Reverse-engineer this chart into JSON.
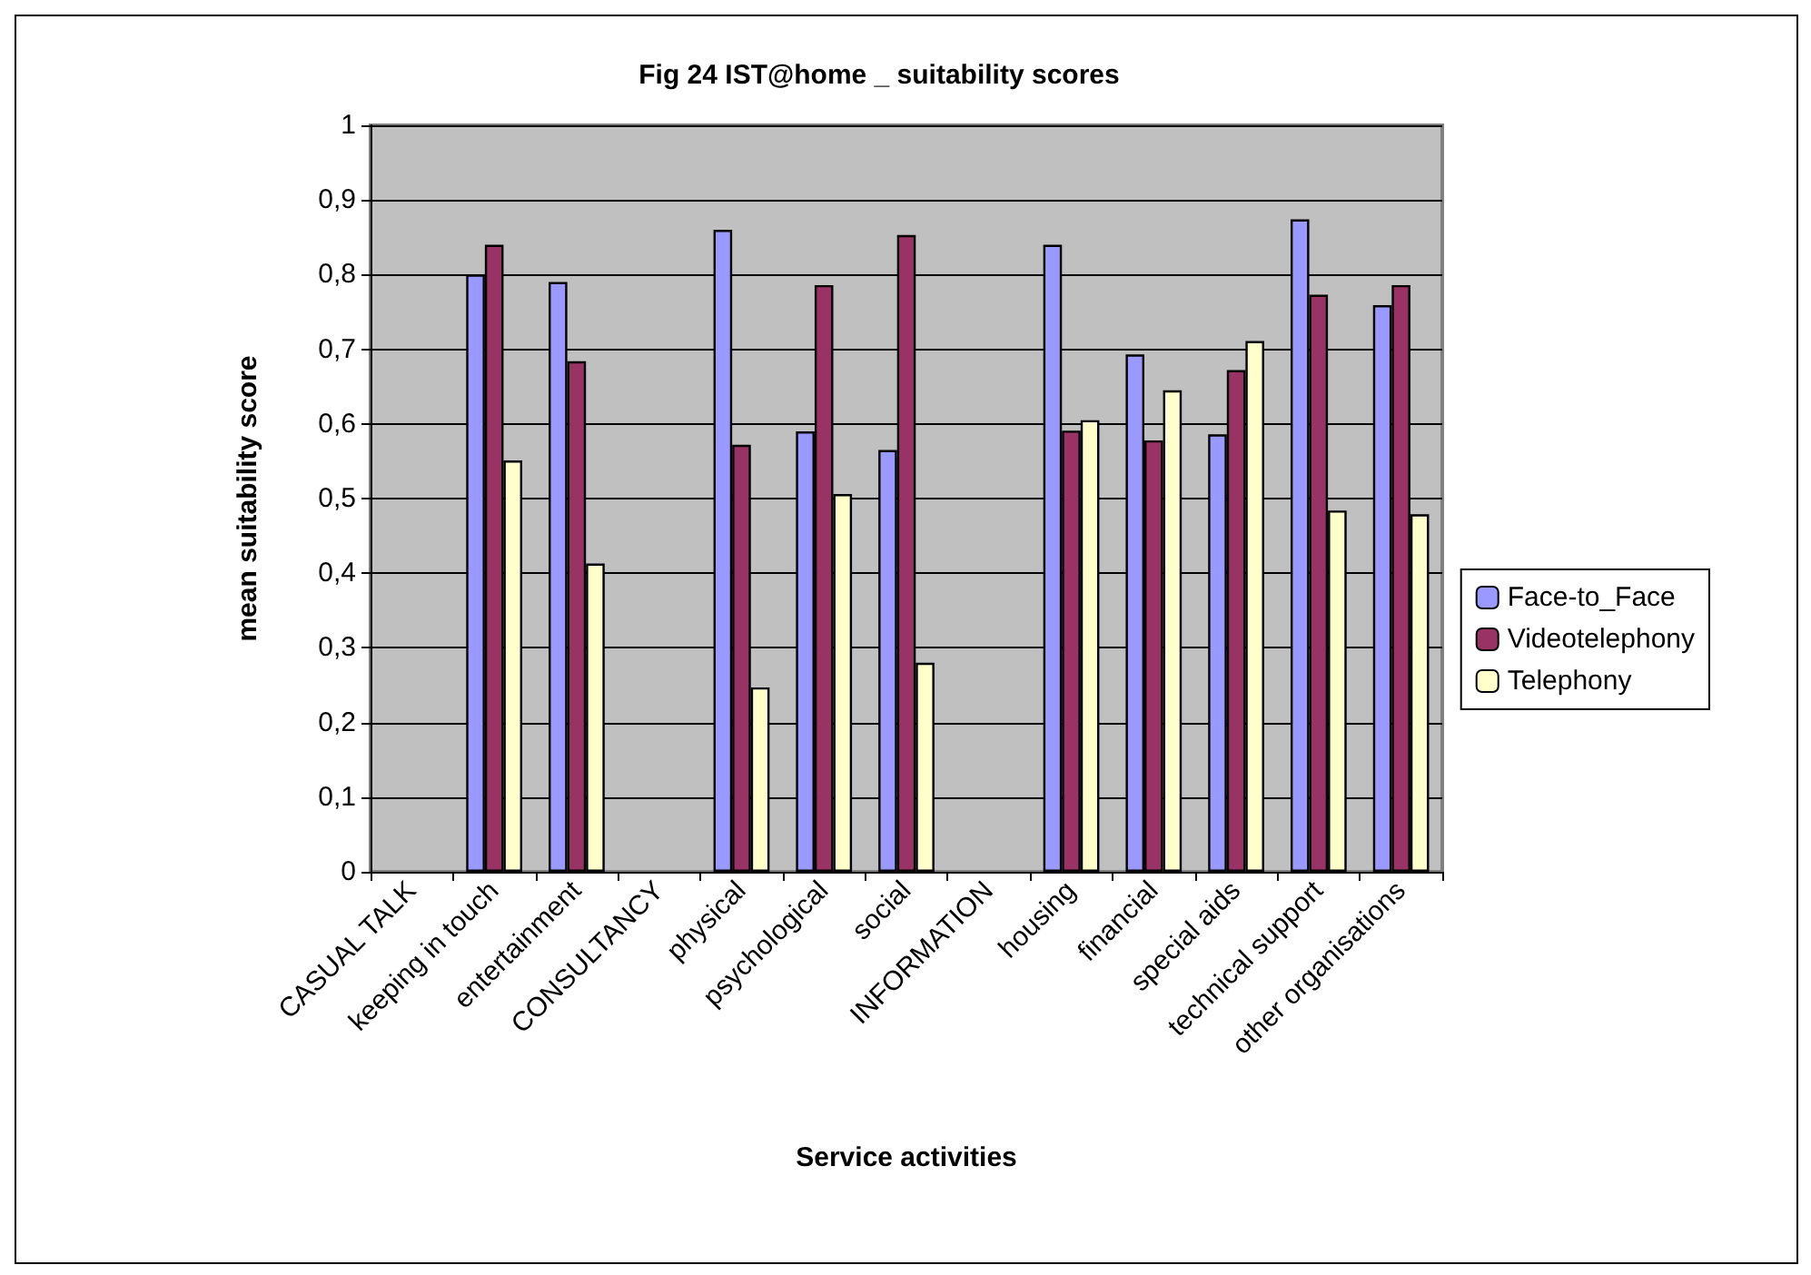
{
  "chart_data": {
    "type": "bar",
    "title": "Fig 24 IST@home _ suitability scores",
    "xlabel": "Service activities",
    "ylabel": "mean suitability score",
    "categories": [
      "CASUAL TALK",
      "keeping in touch",
      "entertainment",
      "CONSULTANCY",
      "physical",
      "psychological",
      "social",
      "INFORMATION",
      "housing",
      "financial",
      "special aids",
      "technical support",
      "other organisations"
    ],
    "series": [
      {
        "name": "Face-to_Face",
        "color": "#9999ff",
        "values": [
          null,
          0.8,
          0.79,
          null,
          0.86,
          0.59,
          0.565,
          null,
          0.84,
          0.693,
          0.586,
          0.874,
          0.759
        ]
      },
      {
        "name": "Videotelephony",
        "color": "#993366",
        "values": [
          null,
          0.84,
          0.684,
          null,
          0.572,
          0.786,
          0.853,
          null,
          0.591,
          0.578,
          0.672,
          0.773,
          0.786
        ]
      },
      {
        "name": "Telephony",
        "color": "#ffffcc",
        "values": [
          null,
          0.551,
          0.413,
          null,
          0.247,
          0.506,
          0.28,
          null,
          0.605,
          0.645,
          0.711,
          0.484,
          0.479
        ]
      }
    ],
    "ylim": [
      0,
      1
    ],
    "yticks": [
      0,
      {
        "value": 0.1,
        "label": "0,1"
      },
      {
        "value": 0.2,
        "label": "0,2"
      },
      {
        "value": 0.3,
        "label": "0,3"
      },
      {
        "value": 0.4,
        "label": "0,4"
      },
      {
        "value": 0.5,
        "label": "0,5"
      },
      {
        "value": 0.6,
        "label": "0,6"
      },
      {
        "value": 0.7,
        "label": "0,7"
      },
      {
        "value": 0.8,
        "label": "0,8"
      },
      {
        "value": 0.9,
        "label": "0,9"
      },
      1
    ],
    "grid": "y",
    "legend": "right"
  }
}
